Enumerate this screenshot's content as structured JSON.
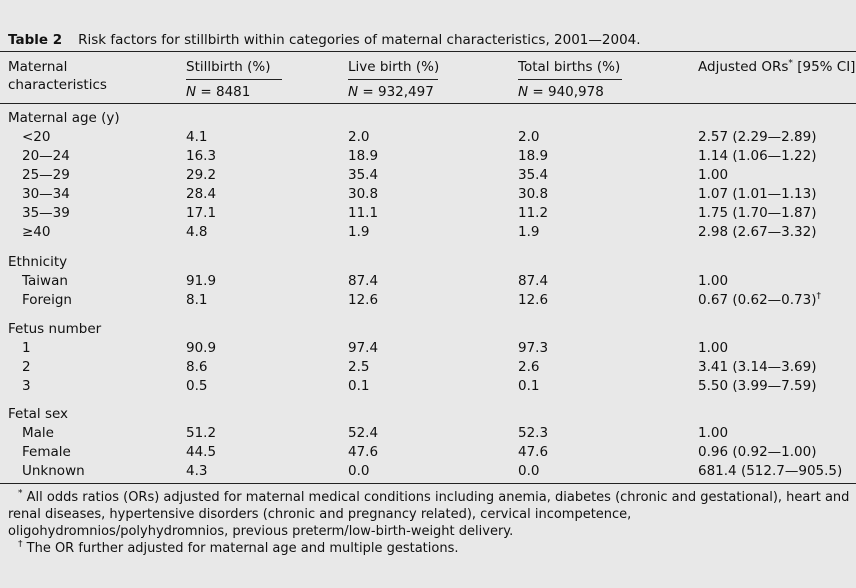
{
  "table": {
    "number": "Table 2",
    "title": "Risk factors for stillbirth within categories of maternal characteristics, 2001—2004.",
    "columns": {
      "c1_line1": "Maternal",
      "c1_line2": "characteristics",
      "c2": "Stillbirth (%)",
      "c3": "Live birth (%)",
      "c4": "Total births (%)",
      "c5_pre": "Adjusted ORs",
      "c5_mark": "*",
      "c5_post": " [95% CI]"
    },
    "n": {
      "label": "N",
      "c2": " = 8481",
      "c3": " = 932,497",
      "c4": " = 940,978"
    },
    "sections": [
      {
        "heading": "Maternal age (y)",
        "rows": [
          {
            "label": "<20",
            "stillbirth": "4.1",
            "live": "2.0",
            "total": "2.0",
            "or": "2.57 (2.29—2.89)",
            "or_mark": ""
          },
          {
            "label": "20—24",
            "stillbirth": "16.3",
            "live": "18.9",
            "total": "18.9",
            "or": "1.14 (1.06—1.22)",
            "or_mark": ""
          },
          {
            "label": "25—29",
            "stillbirth": "29.2",
            "live": "35.4",
            "total": "35.4",
            "or": "1.00",
            "or_mark": ""
          },
          {
            "label": "30—34",
            "stillbirth": "28.4",
            "live": "30.8",
            "total": "30.8",
            "or": "1.07 (1.01—1.13)",
            "or_mark": ""
          },
          {
            "label": "35—39",
            "stillbirth": "17.1",
            "live": "11.1",
            "total": "11.2",
            "or": "1.75 (1.70—1.87)",
            "or_mark": ""
          },
          {
            "label": "≥40",
            "stillbirth": "4.8",
            "live": "1.9",
            "total": "1.9",
            "or": "2.98 (2.67—3.32)",
            "or_mark": ""
          }
        ]
      },
      {
        "heading": "Ethnicity",
        "rows": [
          {
            "label": "Taiwan",
            "stillbirth": "91.9",
            "live": "87.4",
            "total": "87.4",
            "or": "1.00",
            "or_mark": ""
          },
          {
            "label": "Foreign",
            "stillbirth": "8.1",
            "live": "12.6",
            "total": "12.6",
            "or": "0.67 (0.62—0.73)",
            "or_mark": "†"
          }
        ]
      },
      {
        "heading": "Fetus number",
        "rows": [
          {
            "label": "1",
            "stillbirth": "90.9",
            "live": "97.4",
            "total": "97.3",
            "or": "1.00",
            "or_mark": ""
          },
          {
            "label": "2",
            "stillbirth": "8.6",
            "live": "2.5",
            "total": "2.6",
            "or": "3.41 (3.14—3.69)",
            "or_mark": ""
          },
          {
            "label": "3",
            "stillbirth": "0.5",
            "live": "0.1",
            "total": "0.1",
            "or": "5.50 (3.99—7.59)",
            "or_mark": ""
          }
        ]
      },
      {
        "heading": "Fetal sex",
        "rows": [
          {
            "label": "Male",
            "stillbirth": "51.2",
            "live": "52.4",
            "total": "52.3",
            "or": "1.00",
            "or_mark": ""
          },
          {
            "label": "Female",
            "stillbirth": "44.5",
            "live": "47.6",
            "total": "47.6",
            "or": "0.96 (0.92—1.00)",
            "or_mark": ""
          },
          {
            "label": "Unknown",
            "stillbirth": "4.3",
            "live": "0.0",
            "total": "0.0",
            "or": "681.4 (512.7—905.5)",
            "or_mark": ""
          }
        ]
      }
    ],
    "footnotes": [
      {
        "mark": "*",
        "text": " All odds ratios (ORs) adjusted for maternal medical conditions including anemia, diabetes (chronic and gestational), heart and renal diseases, hypertensive disorders (chronic and pregnancy related), cervical incompetence, oligohydromnios/polyhydromnios, previous preterm/low-birth-weight delivery."
      },
      {
        "mark": "†",
        "text": " The OR further adjusted for maternal age and multiple gestations."
      }
    ]
  }
}
